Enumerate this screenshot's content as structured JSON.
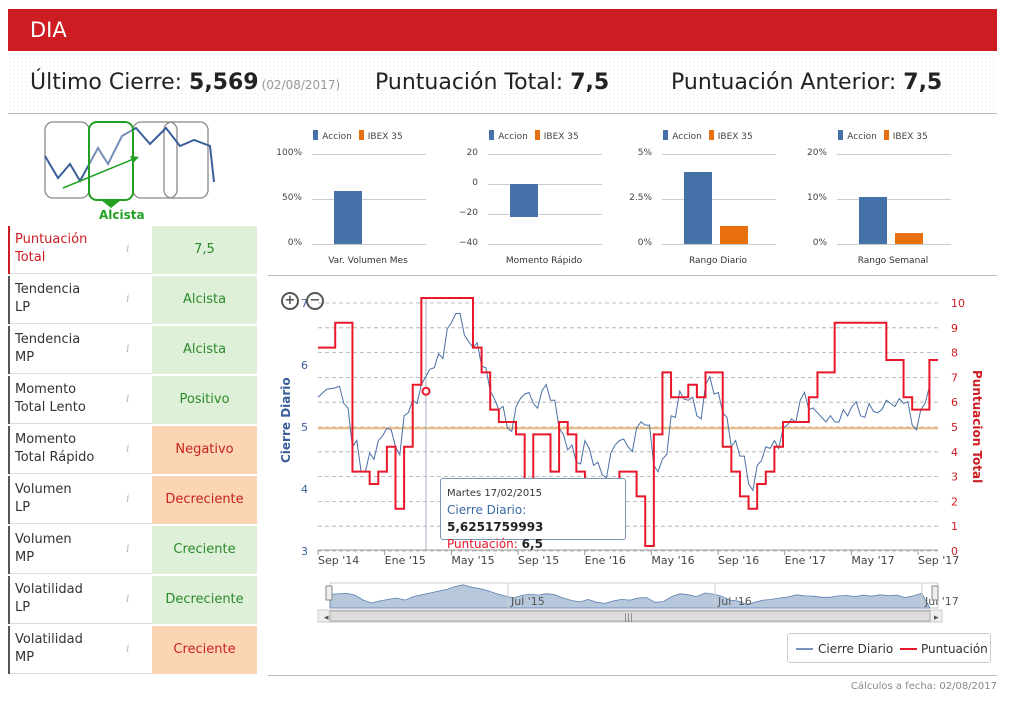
{
  "header": {
    "title": "DIA"
  },
  "stats": {
    "last_close_label": "Último Cierre:",
    "last_close_value": "5,569",
    "last_close_date": "(02/08/2017)",
    "total_score_label": "Puntuación Total:",
    "total_score_value": "7,5",
    "prev_score_label": "Puntuación Anterior:",
    "prev_score_value": "7,5"
  },
  "trend_logo": {
    "label": "Alcista"
  },
  "rows": [
    {
      "label": "Puntuación\nTotal",
      "value": "7,5",
      "status": "green",
      "highlight": true
    },
    {
      "label": "Tendencia\nLP",
      "value": "Alcista",
      "status": "green"
    },
    {
      "label": "Tendencia\nMP",
      "value": "Alcista",
      "status": "green"
    },
    {
      "label": "Momento\nTotal Lento",
      "value": "Positivo",
      "status": "green"
    },
    {
      "label": "Momento\nTotal Rápido",
      "value": "Negativo",
      "status": "orange"
    },
    {
      "label": "Volumen\nLP",
      "value": "Decreciente",
      "status": "orange"
    },
    {
      "label": "Volumen\nMP",
      "value": "Creciente",
      "status": "green"
    },
    {
      "label": "Volatilidad\nLP",
      "value": "Decreciente",
      "status": "green"
    },
    {
      "label": "Volatilidad\nMP",
      "value": "Creciente",
      "status": "orange"
    }
  ],
  "colors": {
    "accion": "#4472a8",
    "ibex": "#e8700f",
    "score": "#e8172a",
    "close": "#4a6fa5",
    "brand": "#cd1c22"
  },
  "chart_data": [
    {
      "type": "bar",
      "title": "Var. Volumen Mes",
      "legend": [
        "Accion",
        "IBEX 35"
      ],
      "ticks": [
        "100%",
        "50%",
        "0%"
      ],
      "ylim": [
        0,
        100
      ],
      "series": [
        {
          "name": "Accion",
          "values": [
            59
          ]
        },
        {
          "name": "IBEX 35",
          "values": [
            0
          ]
        }
      ],
      "categories": [
        "Var. Volumen Mes"
      ]
    },
    {
      "type": "bar",
      "title": "Momento Rápido",
      "legend": [
        "Accion",
        "IBEX 35"
      ],
      "ticks": [
        "20",
        "0",
        "−20",
        "−40"
      ],
      "ylim": [
        -40,
        20
      ],
      "series": [
        {
          "name": "Accion",
          "values": [
            -22
          ]
        },
        {
          "name": "IBEX 35",
          "values": [
            0
          ]
        }
      ],
      "categories": [
        "Momento Rápido"
      ]
    },
    {
      "type": "bar",
      "title": "Rango Diario",
      "legend": [
        "Accion",
        "IBEX 35"
      ],
      "ticks": [
        "5%",
        "2.5%",
        "0%"
      ],
      "ylim": [
        0,
        5
      ],
      "series": [
        {
          "name": "Accion",
          "values": [
            4.0
          ]
        },
        {
          "name": "IBEX 35",
          "values": [
            1.0
          ]
        }
      ],
      "categories": [
        "Rango Diario"
      ]
    },
    {
      "type": "bar",
      "title": "Rango Semanal",
      "legend": [
        "Accion",
        "IBEX 35"
      ],
      "ticks": [
        "20%",
        "10%",
        "0%"
      ],
      "ylim": [
        0,
        20
      ],
      "series": [
        {
          "name": "Accion",
          "values": [
            10.5
          ]
        },
        {
          "name": "IBEX 35",
          "values": [
            2.5
          ]
        }
      ],
      "categories": [
        "Rango Semanal"
      ]
    },
    {
      "type": "line",
      "left_axis_title": "Cierre Diario",
      "right_axis_title": "Puntuacion Total",
      "left_ticks": [
        "7",
        "6",
        "5",
        "4",
        "3"
      ],
      "left_ylim": [
        3,
        7
      ],
      "right_ticks": [
        "10",
        "9",
        "8",
        "7",
        "6",
        "5",
        "4",
        "3",
        "2",
        "1",
        "0"
      ],
      "right_ylim": [
        0,
        10
      ],
      "x_ticks": [
        "Sep '14",
        "Ene '15",
        "May '15",
        "Sep '15",
        "Ene '16",
        "May '16",
        "Sep '16",
        "Ene '17",
        "May '17",
        "Sep '17"
      ],
      "xlim": [
        0,
        36
      ],
      "reference_line": 4.9,
      "series": [
        {
          "name": "Cierre Diario",
          "x": [
            0,
            1,
            1.5,
            2,
            2.5,
            3,
            3.5,
            4,
            4.5,
            5,
            5.5,
            6,
            6.5,
            7,
            7.5,
            8,
            8.5,
            9,
            9.5,
            10,
            10.5,
            11,
            11.5,
            12,
            12.5,
            13,
            13.5,
            14,
            14.5,
            15,
            15.5,
            16,
            16.5,
            17,
            17.5,
            18,
            18.5,
            19,
            19.5,
            20,
            20.5,
            21,
            21.5,
            22,
            22.5,
            23,
            23.5,
            24,
            24.5,
            25,
            25.5,
            26,
            26.5,
            27,
            27.5,
            28,
            28.5,
            29,
            29.5,
            30,
            30.5,
            31,
            31.5,
            32,
            32.5,
            33,
            33.5,
            34,
            34.5,
            35,
            35.5
          ],
          "values": [
            5.4,
            5.55,
            5.3,
            4.6,
            4.2,
            4.5,
            4.7,
            4.9,
            4.6,
            5.1,
            5.35,
            5.6,
            5.85,
            6.1,
            6.5,
            6.75,
            6.4,
            6.2,
            5.9,
            5.5,
            5.2,
            4.9,
            5.25,
            5.45,
            5.3,
            5.5,
            5.35,
            4.9,
            4.55,
            4.35,
            4.7,
            4.3,
            4.15,
            4.5,
            4.7,
            4.6,
            4.9,
            4.95,
            4.3,
            4.4,
            5.1,
            5.5,
            5.35,
            5.1,
            5.6,
            5.45,
            5.15,
            4.6,
            4.45,
            4.0,
            4.3,
            4.6,
            4.7,
            4.9,
            5.05,
            5.35,
            5.2,
            5.15,
            5.0,
            5.0,
            5.2,
            5.25,
            5.1,
            5.3,
            5.15,
            5.35,
            5.25,
            5.3,
            4.95,
            5.2,
            5.57
          ]
        },
        {
          "name": "Puntuación",
          "x": [
            0,
            1,
            1.5,
            2,
            2.5,
            3,
            3.5,
            4,
            4.5,
            5,
            5.5,
            6,
            6.5,
            7,
            7.5,
            8,
            8.5,
            9,
            9.5,
            10,
            10.5,
            11,
            11.5,
            12,
            12.5,
            13,
            13.5,
            14,
            14.5,
            15,
            15.5,
            16,
            16.5,
            17,
            17.5,
            18,
            18.5,
            19,
            19.5,
            20,
            20.5,
            21,
            21.5,
            22,
            22.5,
            23,
            23.5,
            24,
            24.5,
            25,
            25.5,
            26,
            26.5,
            27,
            27.5,
            28,
            28.5,
            29,
            29.5,
            30,
            30.5,
            31,
            31.5,
            32,
            32.5,
            33,
            33.5,
            34,
            34.5,
            35,
            35.5
          ],
          "values": [
            8,
            9,
            9,
            3,
            3,
            2.5,
            3,
            4,
            1.5,
            4,
            6.5,
            10,
            10,
            10,
            10,
            10,
            10,
            8,
            7,
            5.5,
            5,
            5,
            4.5,
            1.5,
            4.5,
            4.5,
            3,
            5,
            4.5,
            3,
            2,
            1.5,
            2.5,
            2.5,
            3,
            3,
            2,
            0,
            4.5,
            7,
            6,
            6,
            6.5,
            6,
            7,
            7,
            4,
            3,
            2,
            1.5,
            2.5,
            3,
            4,
            5,
            5,
            5,
            6,
            7,
            7,
            9,
            9,
            9,
            9,
            9,
            9,
            7.5,
            7.5,
            6,
            5.5,
            5.5,
            7.5
          ]
        }
      ],
      "tooltip": {
        "date_day": "Martes",
        "date": "17/02/2015",
        "close_label": "Cierre Diario:",
        "close_value": "5,6251759993",
        "score_label": "Puntuación:",
        "score_value": "6,5"
      },
      "navigator_ticks": [
        "Jul '15",
        "Jul '16",
        "Jul '17"
      ],
      "legend": [
        "Cierre Diario",
        "Puntuación"
      ]
    }
  ],
  "footer": {
    "text": "Cálculos a fecha: 02/08/2017"
  }
}
